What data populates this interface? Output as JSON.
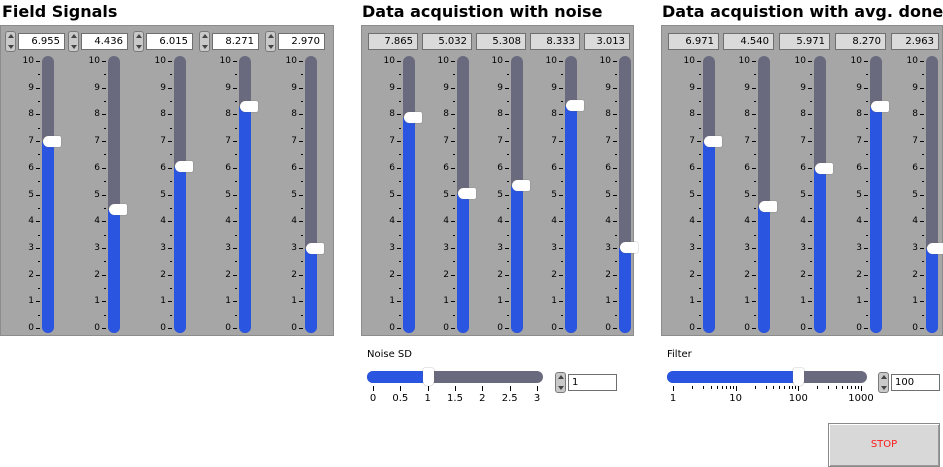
{
  "groups": [
    {
      "title": "Field Signals",
      "kind": "control",
      "values": [
        "6.955",
        "4.436",
        "6.015",
        "8.271",
        "2.970"
      ],
      "levels": [
        6.955,
        4.436,
        6.015,
        8.271,
        2.97
      ]
    },
    {
      "title": "Data acquistion with noise",
      "kind": "indicator",
      "values": [
        "7.865",
        "5.032",
        "5.308",
        "8.333",
        "3.013"
      ],
      "levels": [
        7.865,
        5.032,
        5.308,
        8.333,
        3.013
      ]
    },
    {
      "title": "Data acquistion with avg. done",
      "kind": "indicator",
      "values": [
        "6.971",
        "4.540",
        "5.971",
        "8.270",
        "2.963"
      ],
      "levels": [
        6.971,
        4.54,
        5.971,
        8.27,
        2.963
      ]
    }
  ],
  "scale": {
    "min": 0,
    "max": 10,
    "labels": [
      "10",
      "9",
      "8",
      "7",
      "6",
      "5",
      "4",
      "3",
      "2",
      "1",
      "0"
    ]
  },
  "noise": {
    "label": "Noise SD",
    "value": "1",
    "level": 1,
    "ticks": [
      "0",
      "0.5",
      "1",
      "1.5",
      "2",
      "2.5",
      "3"
    ],
    "min": 0,
    "max": 3
  },
  "filter": {
    "label": "Filter",
    "value": "100",
    "level": 100,
    "ticks": [
      "1",
      "10",
      "100",
      "1000"
    ],
    "log": true
  },
  "stop": {
    "label": "STOP",
    "text_color": "#ff1a1a"
  },
  "colors": {
    "panel": "#a6a6a6",
    "fill": "#2a55e0",
    "track": "#6a6a7e"
  }
}
